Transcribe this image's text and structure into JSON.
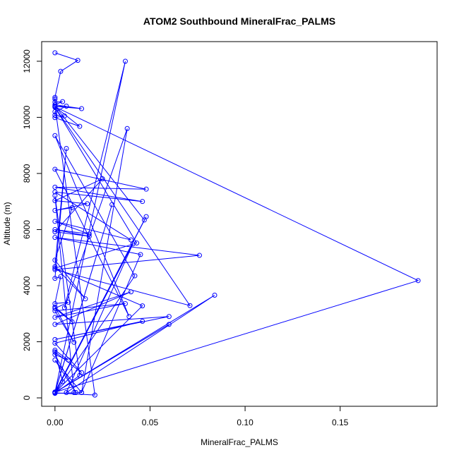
{
  "chart_data": {
    "type": "scatter",
    "title": "ATOM2 Southbound MineralFrac_PALMS",
    "xlabel": "MineralFrac_PALMS",
    "ylabel": "Altitude (m)",
    "xlim": [
      -0.007,
      0.201
    ],
    "ylim": [
      -300,
      12700
    ],
    "x_ticks": [
      0.0,
      0.05,
      0.1,
      0.15
    ],
    "x_tick_labels": [
      "0.00",
      "0.05",
      "0.10",
      "0.15"
    ],
    "y_ticks": [
      0,
      2000,
      4000,
      6000,
      8000,
      10000,
      12000
    ],
    "y_tick_labels": [
      "0",
      "2000",
      "4000",
      "6000",
      "8000",
      "10000",
      "12000"
    ],
    "grid": false,
    "legend": "none",
    "series": [
      {
        "color": "#0000ff",
        "marker": "open-circle",
        "connected": true,
        "points": [
          [
            0.0,
            12300
          ],
          [
            0.012,
            12030
          ],
          [
            0.003,
            11640
          ],
          [
            0.0,
            10710
          ],
          [
            0.0,
            10650
          ],
          [
            0.0,
            10540
          ],
          [
            0.004,
            10560
          ],
          [
            0.0,
            10450
          ],
          [
            0.014,
            10310
          ],
          [
            0.0,
            10390
          ],
          [
            0.006,
            10400
          ],
          [
            0.0,
            10200
          ],
          [
            0.0,
            10080
          ],
          [
            0.005,
            10050
          ],
          [
            0.0,
            9990
          ],
          [
            0.013,
            9680
          ],
          [
            0.0,
            10380
          ],
          [
            0.191,
            4180
          ],
          [
            0.0,
            200
          ],
          [
            0.06,
            2620
          ],
          [
            0.0,
            190
          ],
          [
            0.03,
            6890
          ],
          [
            0.0,
            210
          ],
          [
            0.048,
            6460
          ],
          [
            0.0,
            180
          ],
          [
            0.021,
            100
          ],
          [
            0.0,
            10410
          ],
          [
            0.047,
            6340
          ],
          [
            0.0,
            200
          ],
          [
            0.037,
            12000
          ],
          [
            0.005,
            3210
          ],
          [
            0.038,
            9600
          ],
          [
            0.014,
            190
          ],
          [
            0.045,
            5110
          ],
          [
            0.0,
            5720
          ],
          [
            0.076,
            5080
          ],
          [
            0.0,
            4570
          ],
          [
            0.071,
            3290
          ],
          [
            0.0,
            10360
          ],
          [
            0.043,
            5520
          ],
          [
            0.0,
            4620
          ],
          [
            0.046,
            3280
          ],
          [
            0.0,
            190
          ],
          [
            0.084,
            3660
          ],
          [
            0.006,
            190
          ],
          [
            0.041,
            5490
          ],
          [
            0.0,
            170
          ],
          [
            0.042,
            4350
          ],
          [
            0.0,
            9350
          ],
          [
            0.039,
            2900
          ],
          [
            0.0,
            8150
          ],
          [
            0.048,
            7440
          ],
          [
            0.0,
            7510
          ],
          [
            0.046,
            7000
          ],
          [
            0.0,
            7340
          ],
          [
            0.04,
            5630
          ],
          [
            0.0,
            6290
          ],
          [
            0.018,
            5840
          ],
          [
            0.0,
            6000
          ],
          [
            0.018,
            5760
          ],
          [
            0.0,
            5920
          ],
          [
            0.025,
            7810
          ],
          [
            0.0,
            7030
          ],
          [
            0.017,
            6920
          ],
          [
            0.0,
            6680
          ],
          [
            0.009,
            6780
          ],
          [
            0.0,
            4910
          ],
          [
            0.016,
            3530
          ],
          [
            0.0,
            4680
          ],
          [
            0.006,
            8890
          ],
          [
            0.0,
            4260
          ],
          [
            0.003,
            4320
          ],
          [
            0.0,
            3360
          ],
          [
            0.007,
            3410
          ],
          [
            0.0,
            3190
          ],
          [
            0.009,
            2710
          ],
          [
            0.0,
            3240
          ],
          [
            0.01,
            1980
          ],
          [
            0.0,
            3100
          ],
          [
            0.037,
            3360
          ],
          [
            0.0,
            2870
          ],
          [
            0.04,
            3780
          ],
          [
            0.0,
            2620
          ],
          [
            0.06,
            2900
          ],
          [
            0.0,
            2080
          ],
          [
            0.046,
            2730
          ],
          [
            0.0,
            1950
          ],
          [
            0.014,
            900
          ],
          [
            0.0,
            1640
          ],
          [
            0.004,
            580
          ],
          [
            0.0,
            1700
          ],
          [
            0.007,
            1350
          ],
          [
            0.0,
            1540
          ],
          [
            0.011,
            190
          ],
          [
            0.0,
            1350
          ],
          [
            0.014,
            190
          ],
          [
            0.0,
            160
          ],
          [
            0.013,
            800
          ],
          [
            0.0,
            7210
          ],
          [
            0.01,
            190
          ]
        ]
      }
    ]
  }
}
